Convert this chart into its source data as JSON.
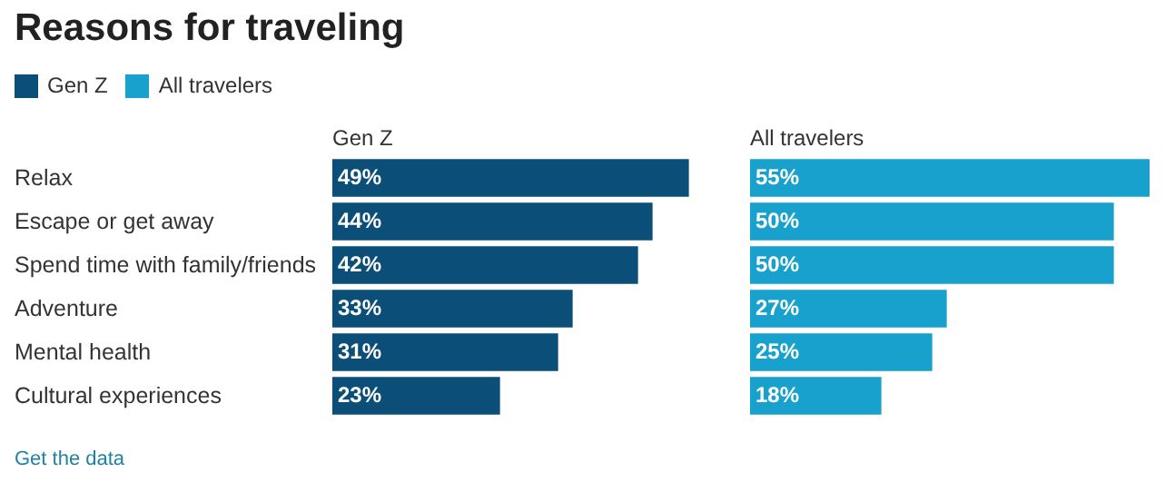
{
  "chart_data": [
    {
      "type": "bar",
      "orientation": "horizontal",
      "title": "Reasons for traveling",
      "legend": "top left",
      "categories": [
        "Relax",
        "Escape or get away",
        "Spend time with family/friends",
        "Adventure",
        "Mental health",
        "Cultural experiences"
      ],
      "series": [
        {
          "name": "Gen Z",
          "color": "#0b4f78",
          "values": [
            49,
            44,
            42,
            33,
            31,
            23
          ],
          "value_labels": [
            "49%",
            "44%",
            "42%",
            "33%",
            "31%",
            "23%"
          ]
        }
      ]
    },
    {
      "type": "bar",
      "orientation": "horizontal",
      "legend": "top left",
      "categories": [
        null,
        null,
        null,
        null,
        null,
        null
      ],
      "series": [
        {
          "name": "All travelers",
          "color": "#18a1cd",
          "values": [
            55,
            50,
            50,
            27,
            25,
            18
          ],
          "value_labels": [
            "55%",
            "50%",
            "50%",
            "27%",
            "25%",
            "18%"
          ]
        }
      ],
      "annotations": [
        "Get the data"
      ]
    }
  ]
}
